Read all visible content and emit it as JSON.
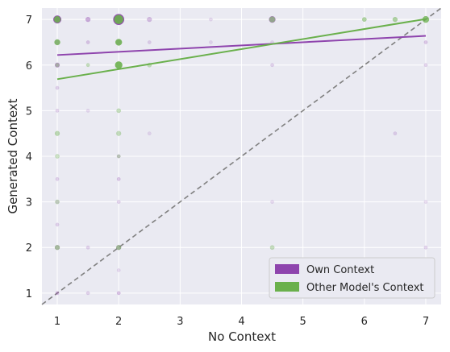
{
  "chart_data": {
    "type": "scatter",
    "title": "",
    "xlabel": "No Context",
    "ylabel": "Generated Context",
    "xlim": [
      0.75,
      7.25
    ],
    "ylim": [
      0.75,
      7.25
    ],
    "xticks": [
      1,
      2,
      3,
      4,
      5,
      6,
      7
    ],
    "yticks": [
      1,
      2,
      3,
      4,
      5,
      6,
      7
    ],
    "grid": true,
    "background": "#eaeaf2",
    "legend_position": "bottom-right",
    "diagonal_reference": {
      "from": [
        0.75,
        0.75
      ],
      "to": [
        7.25,
        7.25
      ],
      "color": "#808080",
      "style": "dashed"
    },
    "series": [
      {
        "name": "Own Context",
        "color": "#8e44ad",
        "trend": {
          "from": [
            1,
            6.22
          ],
          "to": [
            7,
            6.64
          ]
        },
        "points": [
          {
            "x": 1,
            "y": 7,
            "size": 3,
            "alpha": 0.9
          },
          {
            "x": 1.5,
            "y": 7,
            "size": 1,
            "alpha": 0.4
          },
          {
            "x": 2,
            "y": 7,
            "size": 6,
            "alpha": 0.95
          },
          {
            "x": 2.5,
            "y": 7,
            "size": 1,
            "alpha": 0.3
          },
          {
            "x": 3.5,
            "y": 7,
            "size": 0.5,
            "alpha": 0.15
          },
          {
            "x": 4.5,
            "y": 7,
            "size": 2,
            "alpha": 0.5
          },
          {
            "x": 1,
            "y": 6.5,
            "size": 1,
            "alpha": 0.3
          },
          {
            "x": 1.5,
            "y": 6.5,
            "size": 0.5,
            "alpha": 0.25
          },
          {
            "x": 2,
            "y": 6.5,
            "size": 1,
            "alpha": 0.3
          },
          {
            "x": 2.5,
            "y": 6.5,
            "size": 0.5,
            "alpha": 0.2
          },
          {
            "x": 3.5,
            "y": 6.5,
            "size": 0.5,
            "alpha": 0.15
          },
          {
            "x": 4.5,
            "y": 6.5,
            "size": 0.5,
            "alpha": 0.15
          },
          {
            "x": 7,
            "y": 6.5,
            "size": 0.5,
            "alpha": 0.25
          },
          {
            "x": 1,
            "y": 6,
            "size": 1,
            "alpha": 0.45
          },
          {
            "x": 4.5,
            "y": 6,
            "size": 0.5,
            "alpha": 0.2
          },
          {
            "x": 7,
            "y": 6,
            "size": 0.5,
            "alpha": 0.2
          },
          {
            "x": 1,
            "y": 5.5,
            "size": 0.5,
            "alpha": 0.2
          },
          {
            "x": 1,
            "y": 5,
            "size": 0.5,
            "alpha": 0.2
          },
          {
            "x": 1.5,
            "y": 5,
            "size": 0.5,
            "alpha": 0.15
          },
          {
            "x": 2.5,
            "y": 4.5,
            "size": 0.5,
            "alpha": 0.15
          },
          {
            "x": 6.5,
            "y": 4.5,
            "size": 0.5,
            "alpha": 0.2
          },
          {
            "x": 2,
            "y": 4,
            "size": 0.5,
            "alpha": 0.25
          },
          {
            "x": 1,
            "y": 3.5,
            "size": 0.5,
            "alpha": 0.2
          },
          {
            "x": 2,
            "y": 3.5,
            "size": 0.5,
            "alpha": 0.25
          },
          {
            "x": 1,
            "y": 3,
            "size": 0.5,
            "alpha": 0.2
          },
          {
            "x": 2,
            "y": 3,
            "size": 0.5,
            "alpha": 0.2
          },
          {
            "x": 4.5,
            "y": 3,
            "size": 0.5,
            "alpha": 0.15
          },
          {
            "x": 7,
            "y": 3,
            "size": 0.5,
            "alpha": 0.15
          },
          {
            "x": 1,
            "y": 2.5,
            "size": 0.5,
            "alpha": 0.2
          },
          {
            "x": 1,
            "y": 2,
            "size": 1,
            "alpha": 0.3
          },
          {
            "x": 1.5,
            "y": 2,
            "size": 0.5,
            "alpha": 0.2
          },
          {
            "x": 2,
            "y": 2,
            "size": 1,
            "alpha": 0.35
          },
          {
            "x": 7,
            "y": 2,
            "size": 0.5,
            "alpha": 0.2
          },
          {
            "x": 2,
            "y": 1.5,
            "size": 0.5,
            "alpha": 0.15
          },
          {
            "x": 1,
            "y": 1,
            "size": 0.5,
            "alpha": 0.3
          },
          {
            "x": 1.5,
            "y": 1,
            "size": 0.5,
            "alpha": 0.2
          },
          {
            "x": 2,
            "y": 1,
            "size": 0.5,
            "alpha": 0.3
          }
        ]
      },
      {
        "name": "Other Model's Context",
        "color": "#6ab04c",
        "trend": {
          "from": [
            1,
            5.69
          ],
          "to": [
            7,
            7.01
          ]
        },
        "points": [
          {
            "x": 1,
            "y": 7,
            "size": 2,
            "alpha": 0.85
          },
          {
            "x": 2,
            "y": 7,
            "size": 4,
            "alpha": 0.9
          },
          {
            "x": 4.5,
            "y": 7,
            "size": 1.5,
            "alpha": 0.5
          },
          {
            "x": 6,
            "y": 7,
            "size": 0.8,
            "alpha": 0.5
          },
          {
            "x": 6.5,
            "y": 7,
            "size": 1,
            "alpha": 0.5
          },
          {
            "x": 7,
            "y": 7,
            "size": 2,
            "alpha": 0.75
          },
          {
            "x": 1,
            "y": 6.5,
            "size": 1.5,
            "alpha": 0.75
          },
          {
            "x": 2,
            "y": 6.5,
            "size": 2,
            "alpha": 0.85
          },
          {
            "x": 2,
            "y": 6,
            "size": 2.5,
            "alpha": 0.9
          },
          {
            "x": 1.5,
            "y": 6,
            "size": 0.5,
            "alpha": 0.35
          },
          {
            "x": 2.5,
            "y": 6,
            "size": 0.8,
            "alpha": 0.35
          },
          {
            "x": 1,
            "y": 6,
            "size": 0.6,
            "alpha": 0.35
          },
          {
            "x": 2,
            "y": 5,
            "size": 0.8,
            "alpha": 0.35
          },
          {
            "x": 1,
            "y": 4.5,
            "size": 1,
            "alpha": 0.4
          },
          {
            "x": 2,
            "y": 4.5,
            "size": 1,
            "alpha": 0.35
          },
          {
            "x": 1,
            "y": 4,
            "size": 0.8,
            "alpha": 0.3
          },
          {
            "x": 2,
            "y": 4,
            "size": 0.5,
            "alpha": 0.3
          },
          {
            "x": 1,
            "y": 3,
            "size": 0.8,
            "alpha": 0.3
          },
          {
            "x": 1,
            "y": 2,
            "size": 1,
            "alpha": 0.45
          },
          {
            "x": 2,
            "y": 2,
            "size": 1,
            "alpha": 0.5
          },
          {
            "x": 4.5,
            "y": 2,
            "size": 0.8,
            "alpha": 0.35
          }
        ]
      }
    ]
  }
}
